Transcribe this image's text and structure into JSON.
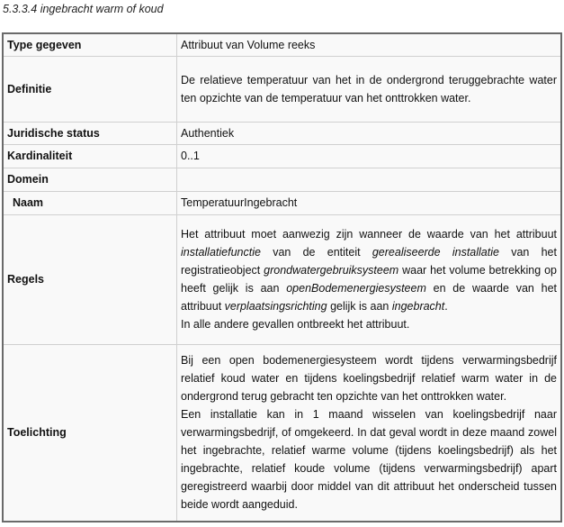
{
  "heading": "5.3.3.4 ingebracht warm of koud",
  "rows": {
    "type": {
      "label": "Type gegeven",
      "value": "Attribuut van Volume reeks"
    },
    "definitie": {
      "label": "Definitie",
      "value": "De relatieve temperatuur van het in de ondergrond teruggebrachte water ten opzichte van de temperatuur van het onttrokken water."
    },
    "juridisch": {
      "label": "Juridische status",
      "value": "Authentiek"
    },
    "kardinaliteit": {
      "label": "Kardinaliteit",
      "value": "0..1"
    },
    "domein": {
      "label": "Domein",
      "value": ""
    },
    "naam": {
      "label": "Naam",
      "value": "TemperatuurIngebracht"
    },
    "regels": {
      "label": "Regels",
      "p1": "Het attribuut moet aanwezig zijn wanneer de waarde van het attribuut ",
      "i1": "installatiefunctie",
      "p2": " van de entiteit ",
      "i2": "gerealiseerde installatie",
      "p3": " van het registratieobject ",
      "i3": "grondwatergebruiksysteem",
      "p4": " waar het volume betrekking op heeft gelijk is aan ",
      "i4": "openBodemenergiesysteem",
      "p5": " en de waarde van het attribuut ",
      "i5": "verplaatsingsrichting",
      "p6": " gelijk is aan ",
      "i6": "ingebracht",
      "p7": ".",
      "line2": "In alle andere gevallen ontbreekt het attribuut."
    },
    "toelichting": {
      "label": "Toelichting",
      "para1": "Bij een open bodemenergiesysteem wordt tijdens verwarmingsbedrijf relatief koud water en tijdens koelingsbedrijf relatief warm water in de ondergrond terug gebracht ten opzichte van het onttrokken water.",
      "para2": "Een installatie kan in 1 maand wisselen van koelingsbedrijf naar verwarmingsbedrijf, of omgekeerd. In dat geval wordt in deze maand zowel het ingebrachte, relatief warme volume (tijdens koelingsbedrijf) als het ingebrachte, relatief koude volume (tijdens verwarmingsbedrijf) apart geregistreerd waarbij door middel van dit attribuut het onderscheid tussen beide wordt aangeduid."
    }
  }
}
